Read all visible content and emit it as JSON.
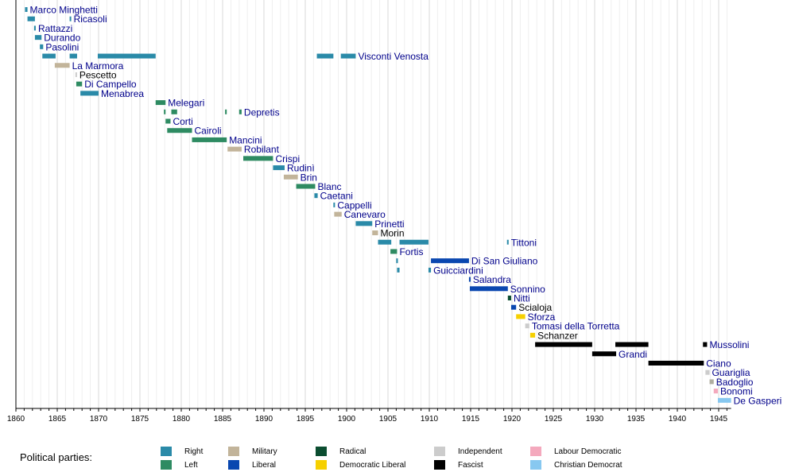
{
  "chart_data": {
    "type": "timeline",
    "title": "",
    "xlabel": "",
    "ylabel": "",
    "xlim": [
      1860,
      1946.5
    ],
    "x_ticks": [
      1860,
      1865,
      1870,
      1875,
      1880,
      1885,
      1890,
      1895,
      1900,
      1905,
      1910,
      1915,
      1920,
      1925,
      1930,
      1935,
      1940,
      1945
    ],
    "grid": true,
    "legend_title": "Political parties:",
    "legend_position": "bottom",
    "parties": [
      {
        "key": "right",
        "name": "Right",
        "color": "#2a8aa8"
      },
      {
        "key": "left",
        "name": "Left",
        "color": "#2e8b62"
      },
      {
        "key": "military",
        "name": "Military",
        "color": "#c2b49a"
      },
      {
        "key": "liberal",
        "name": "Liberal",
        "color": "#0a47b0"
      },
      {
        "key": "radical",
        "name": "Radical",
        "color": "#0b4d30"
      },
      {
        "key": "demlib",
        "name": "Democratic Liberal",
        "color": "#f6d000"
      },
      {
        "key": "independent",
        "name": "Independent",
        "color": "#cccccc"
      },
      {
        "key": "fascist",
        "name": "Fascist",
        "color": "#000000"
      },
      {
        "key": "labour",
        "name": "Labour Democratic",
        "color": "#f4a9bd"
      },
      {
        "key": "christian",
        "name": "Christian Democrat",
        "color": "#87c8f0"
      }
    ],
    "ministers": [
      {
        "name": "Marco Minghetti",
        "label_color": "#00008b",
        "terms": [
          {
            "start": 1861.1,
            "end": 1861.4,
            "party": "right"
          }
        ]
      },
      {
        "name": "Ricasoli",
        "label_color": "#00008b",
        "terms": [
          {
            "start": 1861.4,
            "end": 1862.3,
            "party": "right"
          },
          {
            "start": 1866.5,
            "end": 1866.6,
            "party": "right"
          }
        ]
      },
      {
        "name": "Rattazzi",
        "label_color": "#00008b",
        "terms": [
          {
            "start": 1862.2,
            "end": 1862.4,
            "party": "right"
          }
        ]
      },
      {
        "name": "Durando",
        "label_color": "#00008b",
        "terms": [
          {
            "start": 1862.3,
            "end": 1863.1,
            "party": "right"
          }
        ]
      },
      {
        "name": "Pasolini",
        "label_color": "#00008b",
        "terms": [
          {
            "start": 1862.9,
            "end": 1863.3,
            "party": "right"
          }
        ]
      },
      {
        "name": "Visconti Venosta",
        "label_color": "#00008b",
        "terms": [
          {
            "start": 1863.2,
            "end": 1864.8,
            "party": "right"
          },
          {
            "start": 1866.5,
            "end": 1867.4,
            "party": "right"
          },
          {
            "start": 1869.9,
            "end": 1876.9,
            "party": "right"
          },
          {
            "start": 1896.4,
            "end": 1898.4,
            "party": "right"
          },
          {
            "start": 1899.3,
            "end": 1901.1,
            "party": "right"
          }
        ]
      },
      {
        "name": "La Marmora",
        "label_color": "#00008b",
        "terms": [
          {
            "start": 1864.7,
            "end": 1866.5,
            "party": "military"
          }
        ]
      },
      {
        "name": "Pescetto",
        "label_color": "#000000",
        "terms": [
          {
            "start": 1867.2,
            "end": 1867.3,
            "party": "independent"
          }
        ]
      },
      {
        "name": "Di Campello",
        "label_color": "#00008b",
        "terms": [
          {
            "start": 1867.3,
            "end": 1868.0,
            "party": "left"
          }
        ]
      },
      {
        "name": "Menabrea",
        "label_color": "#00008b",
        "terms": [
          {
            "start": 1867.8,
            "end": 1870.0,
            "party": "right"
          }
        ]
      },
      {
        "name": "Melegari",
        "label_color": "#00008b",
        "terms": [
          {
            "start": 1876.9,
            "end": 1878.1,
            "party": "left"
          }
        ]
      },
      {
        "name": "Depretis",
        "label_color": "#00008b",
        "terms": [
          {
            "start": 1877.9,
            "end": 1878.1,
            "party": "left"
          },
          {
            "start": 1878.8,
            "end": 1879.5,
            "party": "left"
          },
          {
            "start": 1885.3,
            "end": 1885.5,
            "party": "left"
          },
          {
            "start": 1887.0,
            "end": 1887.3,
            "party": "left"
          }
        ]
      },
      {
        "name": "Corti",
        "label_color": "#00008b",
        "terms": [
          {
            "start": 1878.1,
            "end": 1878.7,
            "party": "left"
          }
        ]
      },
      {
        "name": "Cairoli",
        "label_color": "#00008b",
        "terms": [
          {
            "start": 1878.3,
            "end": 1881.3,
            "party": "left"
          }
        ]
      },
      {
        "name": "Mancini",
        "label_color": "#00008b",
        "terms": [
          {
            "start": 1881.3,
            "end": 1885.5,
            "party": "left"
          }
        ]
      },
      {
        "name": "Robilant",
        "label_color": "#00008b",
        "terms": [
          {
            "start": 1885.6,
            "end": 1887.3,
            "party": "military"
          }
        ]
      },
      {
        "name": "Crispi",
        "label_color": "#00008b",
        "terms": [
          {
            "start": 1887.5,
            "end": 1891.1,
            "party": "left"
          }
        ]
      },
      {
        "name": "Rudinì",
        "label_color": "#00008b",
        "terms": [
          {
            "start": 1891.1,
            "end": 1892.5,
            "party": "right"
          }
        ]
      },
      {
        "name": "Brin",
        "label_color": "#00008b",
        "terms": [
          {
            "start": 1892.4,
            "end": 1894.1,
            "party": "military"
          }
        ]
      },
      {
        "name": "Blanc",
        "label_color": "#00008b",
        "terms": [
          {
            "start": 1893.9,
            "end": 1896.2,
            "party": "left"
          }
        ]
      },
      {
        "name": "Caetani",
        "label_color": "#00008b",
        "terms": [
          {
            "start": 1896.1,
            "end": 1896.5,
            "party": "right"
          }
        ]
      },
      {
        "name": "Cappelli",
        "label_color": "#00008b",
        "terms": [
          {
            "start": 1898.4,
            "end": 1898.5,
            "party": "right"
          }
        ]
      },
      {
        "name": "Canevaro",
        "label_color": "#00008b",
        "terms": [
          {
            "start": 1898.5,
            "end": 1899.4,
            "party": "military"
          }
        ]
      },
      {
        "name": "Prinetti",
        "label_color": "#00008b",
        "terms": [
          {
            "start": 1901.1,
            "end": 1903.1,
            "party": "right"
          }
        ]
      },
      {
        "name": "Morin",
        "label_color": "#000000",
        "terms": [
          {
            "start": 1903.1,
            "end": 1903.8,
            "party": "military"
          }
        ]
      },
      {
        "name": "Tittoni",
        "label_color": "#00008b",
        "terms": [
          {
            "start": 1903.8,
            "end": 1905.4,
            "party": "right"
          },
          {
            "start": 1906.4,
            "end": 1909.9,
            "party": "right"
          },
          {
            "start": 1919.4,
            "end": 1919.5,
            "party": "right"
          }
        ]
      },
      {
        "name": "Fortis",
        "label_color": "#00008b",
        "terms": [
          {
            "start": 1905.3,
            "end": 1906.1,
            "party": "left"
          }
        ]
      },
      {
        "name": "Di San Giuliano",
        "label_color": "#00008b",
        "terms": [
          {
            "start": 1906.0,
            "end": 1906.2,
            "party": "right"
          },
          {
            "start": 1910.2,
            "end": 1914.8,
            "party": "liberal"
          }
        ]
      },
      {
        "name": "Guicciardini",
        "label_color": "#00008b",
        "terms": [
          {
            "start": 1906.1,
            "end": 1906.4,
            "party": "right"
          },
          {
            "start": 1909.9,
            "end": 1910.2,
            "party": "right"
          }
        ]
      },
      {
        "name": "Salandra",
        "label_color": "#00008b",
        "terms": [
          {
            "start": 1914.8,
            "end": 1914.9,
            "party": "liberal"
          }
        ]
      },
      {
        "name": "Sonnino",
        "label_color": "#00008b",
        "terms": [
          {
            "start": 1914.9,
            "end": 1919.5,
            "party": "liberal"
          }
        ]
      },
      {
        "name": "Nitti",
        "label_color": "#00008b",
        "terms": [
          {
            "start": 1919.5,
            "end": 1919.9,
            "party": "radical"
          }
        ]
      },
      {
        "name": "Scialoja",
        "label_color": "#000000",
        "terms": [
          {
            "start": 1919.9,
            "end": 1920.5,
            "party": "liberal"
          }
        ]
      },
      {
        "name": "Sforza",
        "label_color": "#00008b",
        "terms": [
          {
            "start": 1920.5,
            "end": 1921.6,
            "party": "demlib"
          }
        ]
      },
      {
        "name": "Tomasi della Torretta",
        "label_color": "#00008b",
        "terms": [
          {
            "start": 1921.6,
            "end": 1922.1,
            "party": "independent"
          }
        ]
      },
      {
        "name": "Schanzer",
        "label_color": "#000000",
        "terms": [
          {
            "start": 1922.2,
            "end": 1922.8,
            "party": "demlib"
          }
        ]
      },
      {
        "name": "Mussolini",
        "label_color": "#00008b",
        "terms": [
          {
            "start": 1922.8,
            "end": 1929.7,
            "party": "fascist"
          },
          {
            "start": 1932.5,
            "end": 1936.5,
            "party": "fascist"
          },
          {
            "start": 1943.1,
            "end": 1943.6,
            "party": "fascist"
          }
        ]
      },
      {
        "name": "Grandi",
        "label_color": "#00008b",
        "terms": [
          {
            "start": 1929.7,
            "end": 1932.6,
            "party": "fascist"
          }
        ]
      },
      {
        "name": "Ciano",
        "label_color": "#00008b",
        "terms": [
          {
            "start": 1936.5,
            "end": 1943.2,
            "party": "fascist"
          }
        ]
      },
      {
        "name": "Guariglia",
        "label_color": "#00008b",
        "terms": [
          {
            "start": 1943.4,
            "end": 1943.9,
            "party": "independent"
          }
        ]
      },
      {
        "name": "Badoglio",
        "label_color": "#00008b",
        "terms": [
          {
            "start": 1943.9,
            "end": 1944.4,
            "party": "military_gray"
          }
        ]
      },
      {
        "name": "Bonomi",
        "label_color": "#00008b",
        "terms": [
          {
            "start": 1944.4,
            "end": 1944.9,
            "party": "labour"
          }
        ]
      },
      {
        "name": "De Gasperi",
        "label_color": "#00008b",
        "terms": [
          {
            "start": 1944.9,
            "end": 1946.5,
            "party": "christian"
          }
        ]
      }
    ]
  }
}
